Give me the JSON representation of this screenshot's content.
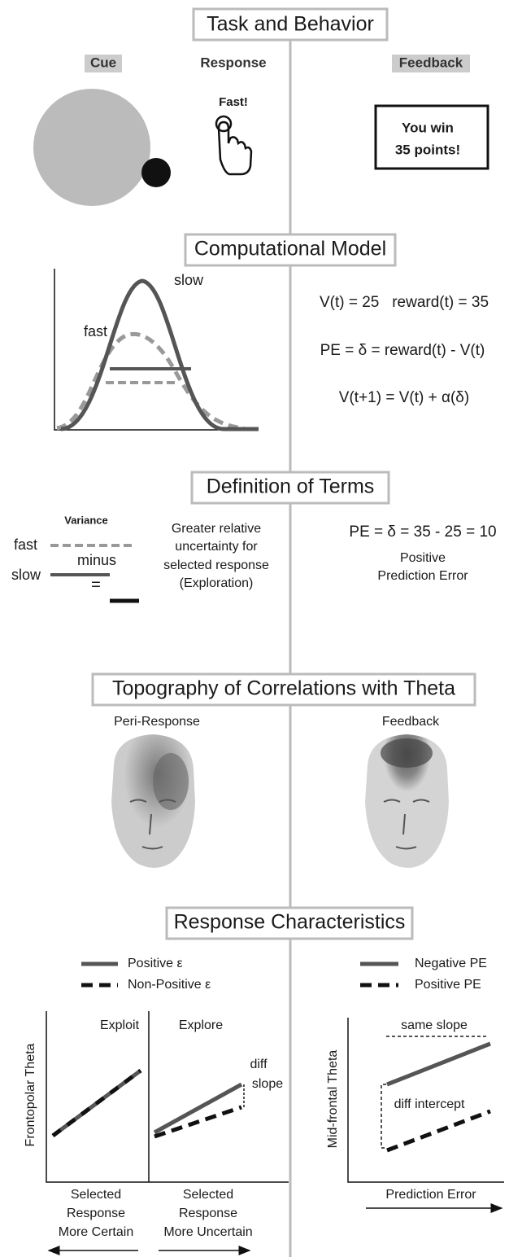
{
  "task": {
    "title": "Task and Behavior",
    "cue": "Cue",
    "response": "Response",
    "fast": "Fast!",
    "feedback": "Feedback",
    "message": [
      "You win",
      "35 points!"
    ]
  },
  "model": {
    "title": "Computational Model",
    "slow": "slow",
    "fast": "fast",
    "equations": [
      "V(t) = 25   reward(t) = 35",
      "PE = δ = reward(t) - V(t)",
      "V(t+1) = V(t) + α(δ)"
    ]
  },
  "terms": {
    "title": "Definition of Terms",
    "variance": "Variance",
    "fast": "fast",
    "minus": "minus",
    "slow": "slow",
    "equals": "=",
    "description": [
      "Greater relative",
      "uncertainty for",
      "selected response",
      "(Exploration)"
    ],
    "pe": "PE = δ = 35 - 25 = 10",
    "pe_label": [
      "Positive",
      "Prediction Error"
    ]
  },
  "topography": {
    "title": "Topography of Correlations with Theta",
    "left": "Peri-Response",
    "right": "Feedback"
  },
  "response": {
    "title": "Response Characteristics",
    "legend_left": [
      "Positive ε",
      "Non-Positive ε"
    ],
    "legend_right": [
      "Negative PE",
      "Positive PE"
    ],
    "exploit": "Exploit",
    "explore": "Explore",
    "y_left": "Frontopolar Theta",
    "diff": [
      "diff",
      "slope"
    ],
    "x_left": [
      "Selected",
      "Response",
      "More Certain"
    ],
    "x_right": [
      "Selected",
      "Response",
      "More Uncertain"
    ],
    "same_slope": "same slope",
    "diff_intercept": "diff intercept",
    "y_right": "Mid-frontal Theta",
    "x_mid": "Prediction Error"
  }
}
